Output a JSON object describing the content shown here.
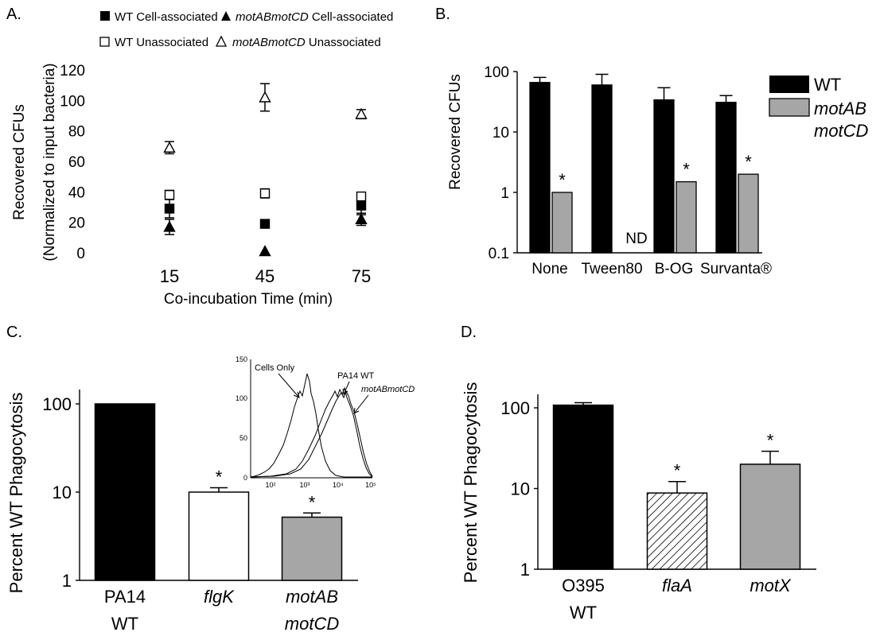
{
  "chart_data": [
    {
      "panel": "A.",
      "type": "scatter",
      "xlabel": "Co-incubation Time (min)",
      "ylabel": "Recovered CFUs",
      "ylabel2": "(Normalized to input bacteria)",
      "x": [
        15,
        45,
        75
      ],
      "xtick_labels": [
        "15",
        "45",
        "75"
      ],
      "ylim": [
        0,
        120
      ],
      "yticks": [
        0,
        20,
        40,
        60,
        80,
        100,
        120
      ],
      "legend": [
        {
          "marker": "filled-square",
          "plain": "WT Cell-associated",
          "italic": ""
        },
        {
          "marker": "filled-triangle",
          "plain": " Cell-associated",
          "italic": "motABmotCD"
        },
        {
          "marker": "open-square",
          "plain": "WT Unassociated",
          "italic": ""
        },
        {
          "marker": "open-triangle",
          "plain": " Unassociated",
          "italic": "motABmotCD"
        }
      ],
      "series": [
        {
          "name": "WT Cell-associated",
          "marker": "filled-square",
          "values": [
            29,
            19,
            31
          ],
          "errors": [
            6,
            0,
            6
          ]
        },
        {
          "name": "motABmotCD Cell-associated",
          "marker": "filled-triangle",
          "values": [
            17,
            1,
            22
          ],
          "errors": [
            5,
            0,
            4
          ]
        },
        {
          "name": "WT Unassociated",
          "marker": "open-square",
          "values": [
            38,
            39,
            37
          ],
          "errors": [
            3,
            3,
            2
          ]
        },
        {
          "name": "motABmotCD Unassociated",
          "marker": "open-triangle",
          "values": [
            69,
            102,
            91
          ],
          "errors": [
            4,
            9,
            3
          ]
        }
      ]
    },
    {
      "panel": "B.",
      "type": "bar",
      "scale": "log",
      "ylabel": "Recovered CFUs",
      "ylim": [
        0.1,
        100
      ],
      "ytick_labels": [
        "0.1",
        "1",
        "10",
        "100"
      ],
      "categories": [
        "None",
        "Tween80",
        "B-OG",
        "Survanta®"
      ],
      "legend": [
        {
          "color": "#000000",
          "line1": "WT",
          "line2": ""
        },
        {
          "color": "#a6a6a6",
          "line1": "motAB",
          "line2": "motCD"
        }
      ],
      "nd_label": "ND",
      "star": "*",
      "series": [
        {
          "name": "WT",
          "color": "#000000",
          "values": [
            66,
            60,
            34,
            31
          ],
          "errors": [
            14,
            30,
            20,
            9
          ]
        },
        {
          "name": "motABmotCD",
          "color": "#a6a6a6",
          "values": [
            1.0,
            null,
            1.5,
            2.0
          ],
          "errors": [
            0,
            null,
            0,
            0
          ],
          "significant": [
            true,
            false,
            true,
            true
          ]
        }
      ]
    },
    {
      "panel": "C.",
      "type": "bar",
      "scale": "log",
      "ylabel": "Percent WT Phagocytosis",
      "ylim": [
        1,
        100
      ],
      "ytick_labels": [
        "1",
        "10",
        "100"
      ],
      "categories": [
        {
          "line1": "PA14",
          "line2": "WT",
          "italic": false
        },
        {
          "line1": "flgK",
          "line2": "",
          "italic": true
        },
        {
          "line1": "motAB",
          "line2": "motCD",
          "italic": true
        }
      ],
      "values": [
        100,
        10.0,
        5.2
      ],
      "errors": [
        0,
        1.2,
        0.6
      ],
      "colors": [
        "#000000",
        "#ffffff",
        "#a6a6a6"
      ],
      "significant": [
        false,
        true,
        true
      ],
      "star": "*",
      "inset": {
        "type": "histogram",
        "yticks": [
          "0",
          "50",
          "100",
          "150"
        ],
        "xticks": [
          "10²",
          "10³",
          "10⁴",
          "10⁵"
        ],
        "annotations": [
          "Cells Only",
          "PA14 WT",
          "motABmotCD"
        ]
      }
    },
    {
      "panel": "D.",
      "type": "bar",
      "scale": "log",
      "ylabel": "Percent WT Phagocytosis",
      "ylim": [
        1,
        100
      ],
      "ytick_labels": [
        "1",
        "10",
        "100"
      ],
      "categories": [
        {
          "line1": "O395",
          "line2": "WT",
          "italic": false
        },
        {
          "line1": "flaA",
          "line2": "",
          "italic": true
        },
        {
          "line1": "motX",
          "line2": "",
          "italic": true
        }
      ],
      "values": [
        108,
        8.8,
        20
      ],
      "errors": [
        8,
        3.4,
        9
      ],
      "colors": [
        "#000000",
        "hatched",
        "#a6a6a6"
      ],
      "significant": [
        false,
        true,
        true
      ],
      "star": "*"
    }
  ]
}
